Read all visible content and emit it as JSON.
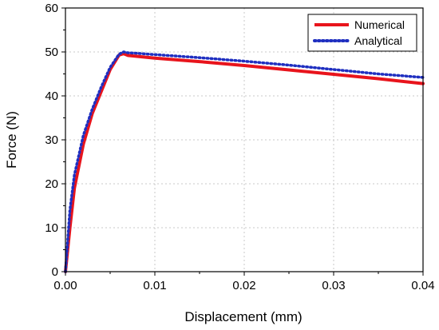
{
  "chart_data": {
    "type": "line",
    "title": "",
    "xlabel": "Displacement (mm)",
    "ylabel": "Force (N)",
    "xlim": [
      0,
      0.04
    ],
    "ylim": [
      0,
      60
    ],
    "x_ticks": [
      0.0,
      0.01,
      0.02,
      0.03,
      0.04
    ],
    "x_tick_labels": [
      "0.00",
      "0.01",
      "0.02",
      "0.03",
      "0.04"
    ],
    "y_ticks": [
      0,
      10,
      20,
      30,
      40,
      50,
      60
    ],
    "y_tick_labels": [
      "0",
      "10",
      "20",
      "30",
      "40",
      "50",
      "60"
    ],
    "grid": true,
    "legend_position": "top-right",
    "series": [
      {
        "name": "Numerical",
        "color": "#e8141c",
        "style": "solid",
        "x": [
          0.0,
          0.0005,
          0.001,
          0.002,
          0.003,
          0.004,
          0.005,
          0.006,
          0.0065,
          0.007,
          0.008,
          0.01,
          0.015,
          0.02,
          0.025,
          0.03,
          0.035,
          0.04
        ],
        "y": [
          0,
          10,
          19,
          29,
          36,
          41,
          46,
          49.3,
          49.6,
          49.2,
          49.0,
          48.6,
          47.8,
          46.9,
          45.9,
          44.9,
          43.9,
          42.8
        ]
      },
      {
        "name": "Analytical",
        "color": "#1f2fc0",
        "style": "dotted",
        "x": [
          0.0,
          0.0005,
          0.001,
          0.002,
          0.003,
          0.004,
          0.005,
          0.006,
          0.0065,
          0.007,
          0.008,
          0.01,
          0.015,
          0.02,
          0.025,
          0.03,
          0.035,
          0.04
        ],
        "y": [
          0,
          14,
          22,
          31,
          37,
          42,
          46.5,
          49.5,
          50.0,
          49.8,
          49.7,
          49.4,
          48.7,
          47.9,
          47.0,
          46.0,
          45.0,
          44.2
        ]
      }
    ]
  }
}
